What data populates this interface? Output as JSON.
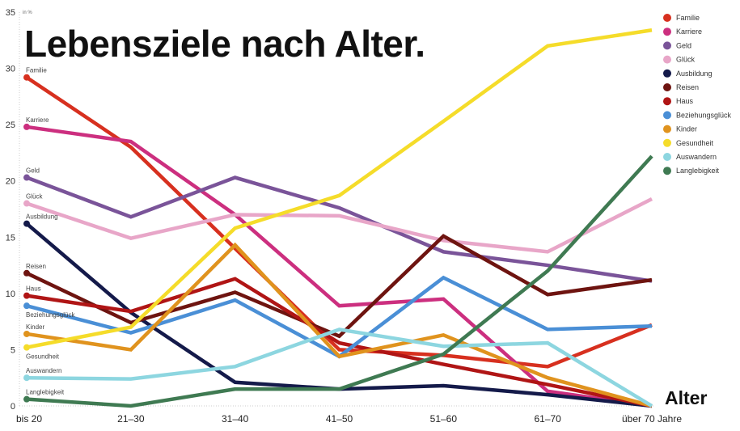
{
  "chart_data": {
    "type": "line",
    "title": "Lebensziele nach Alter.",
    "ylabel": "in %",
    "xlabel": "Alter",
    "ylim": [
      0,
      35
    ],
    "yticks": [
      0,
      5,
      10,
      15,
      20,
      25,
      30,
      35
    ],
    "grid": false,
    "legend_placement": "right",
    "categories": [
      "bis 20",
      "21–30",
      "31–40",
      "41–50",
      "51–60",
      "61–70",
      "über 70 Jahre"
    ],
    "series": [
      {
        "name": "Familie",
        "color": "#d7301f",
        "values": [
          29.2,
          23.0,
          14.0,
          5.0,
          4.5,
          3.5,
          7.2
        ]
      },
      {
        "name": "Karriere",
        "color": "#cc2f7f",
        "values": [
          24.8,
          23.5,
          17.0,
          8.9,
          9.5,
          1.3,
          0
        ]
      },
      {
        "name": "Geld",
        "color": "#7a5499",
        "values": [
          20.3,
          16.8,
          20.3,
          17.6,
          13.7,
          12.5,
          11.1
        ]
      },
      {
        "name": "Glück",
        "color": "#e8a6c8",
        "values": [
          18.0,
          14.9,
          17.0,
          16.9,
          14.7,
          13.7,
          18.4
        ]
      },
      {
        "name": "Ausbildung",
        "color": "#141a4a",
        "values": [
          16.2,
          8.3,
          2.1,
          1.5,
          1.8,
          1.0,
          0
        ]
      },
      {
        "name": "Reisen",
        "color": "#6e1410",
        "values": [
          11.8,
          7.4,
          10.1,
          6.2,
          15.1,
          9.9,
          11.2
        ]
      },
      {
        "name": "Haus",
        "color": "#b01515",
        "values": [
          9.8,
          8.4,
          11.3,
          5.6,
          3.7,
          1.9,
          0
        ]
      },
      {
        "name": "Beziehungsglück",
        "color": "#4a8fd6",
        "values": [
          8.9,
          6.5,
          9.4,
          4.4,
          11.4,
          6.8,
          7.1
        ]
      },
      {
        "name": "Kinder",
        "color": "#e0931e",
        "values": [
          6.4,
          5.0,
          14.3,
          4.4,
          6.3,
          2.5,
          0
        ]
      },
      {
        "name": "Gesundheit",
        "color": "#f5dc2a",
        "values": [
          5.2,
          7.0,
          15.8,
          18.7,
          25.3,
          32.0,
          33.4
        ]
      },
      {
        "name": "Auswandern",
        "color": "#8dd6e0",
        "values": [
          2.5,
          2.4,
          3.5,
          6.8,
          5.3,
          5.6,
          0
        ]
      },
      {
        "name": "Langlebigkeit",
        "color": "#3f7a52",
        "values": [
          0.6,
          0,
          1.5,
          1.5,
          4.6,
          12.0,
          22.2
        ]
      }
    ]
  }
}
